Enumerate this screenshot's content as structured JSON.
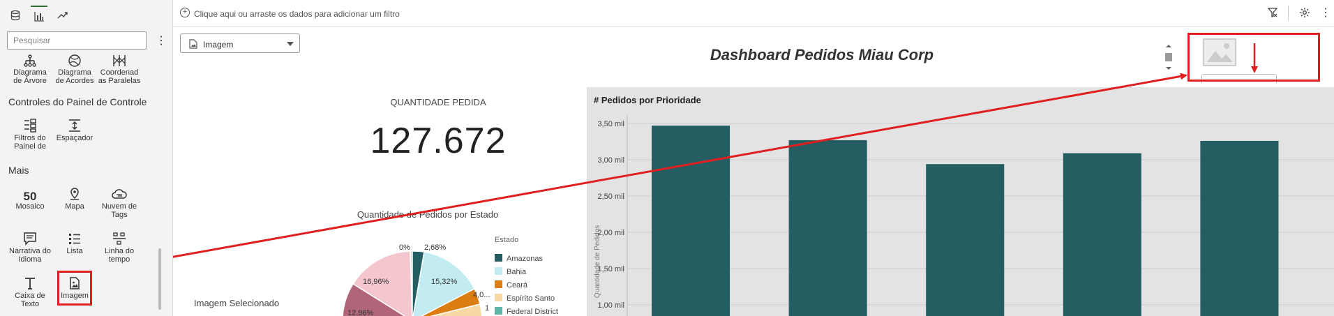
{
  "sidebar": {
    "search_placeholder": "Pesquisar",
    "viz_row1": [
      {
        "label": "Diagrama de Árvore",
        "icon": "tree-diagram-icon"
      },
      {
        "label": "Diagrama de Acordes",
        "icon": "chord-diagram-icon"
      },
      {
        "label": "Coordenad as Paralelas",
        "icon": "parallel-coordinates-icon"
      }
    ],
    "section_controls": "Controles do Painel de Controle",
    "controls": [
      {
        "label": "Filtros do Painel de",
        "icon": "dashboard-filters-icon"
      },
      {
        "label": "Espaçador",
        "icon": "spacer-icon"
      }
    ],
    "section_more": "Mais",
    "more_row1": [
      {
        "label": "Mosaico",
        "icon": "mosaic-icon",
        "glyph": "50"
      },
      {
        "label": "Mapa",
        "icon": "map-pin-icon"
      },
      {
        "label": "Nuvem de Tags",
        "icon": "tag-cloud-icon"
      }
    ],
    "more_row2": [
      {
        "label": "Narrativa do Idioma",
        "icon": "language-narrative-icon"
      },
      {
        "label": "Lista",
        "icon": "list-icon"
      },
      {
        "label": "Linha do tempo",
        "icon": "timeline-icon"
      }
    ],
    "more_row3": [
      {
        "label": "Caixa de Texto",
        "icon": "text-box-icon"
      },
      {
        "label": "Imagem",
        "icon": "image-icon"
      }
    ]
  },
  "topbar": {
    "filter_hint": "Clique aqui ou arraste os dados para adicionar um filtro"
  },
  "canvas": {
    "image_select_value": "Imagem",
    "dashboard_title": "Dashboard Pedidos Miau Corp",
    "kpi_label": "QUANTIDADE PEDIDA",
    "kpi_value": "127.672",
    "image_caption": "Imagem Selecionado"
  },
  "colors": {
    "bar": "#245e63",
    "highlight": "#e02020",
    "panel_bg": "#e3e3e3"
  },
  "chart_data": [
    {
      "type": "pie",
      "title": "Quantidade de Pedidos por Estado",
      "legend_title": "Estado",
      "legend_placement": "right",
      "categories": [
        "Amazonas",
        "Bahia",
        "Ceará",
        "Espírito Santo",
        "Federal District"
      ],
      "slice_colors": [
        "#245e63",
        "#c3ecf2",
        "#db7d12",
        "#f8d9a3",
        "#5fb5a8"
      ],
      "visible_slice_labels": [
        "0%",
        "2,68%",
        "15,32%",
        "4,0...",
        "1",
        "16,96%",
        "12,96%"
      ]
    },
    {
      "type": "bar",
      "title": "# Pedidos por Prioridade",
      "ylabel": "Quantidade de Pedidos",
      "yticks": [
        "3,50 mil",
        "3,00 mil",
        "2,50 mil",
        "2,00 mil",
        "1,50 mil",
        "1,00 mil"
      ],
      "ytick_values": [
        3500,
        3000,
        2500,
        2000,
        1500,
        1000
      ],
      "ylim": [
        850,
        3500
      ],
      "values": [
        3470,
        3270,
        2940,
        3090,
        3260
      ],
      "grid": true
    }
  ]
}
